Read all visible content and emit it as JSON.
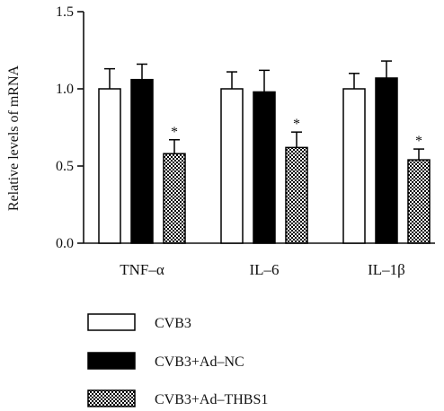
{
  "chart_data": {
    "type": "bar",
    "ylabel": "Relative levels of mRNA",
    "xlabel": "",
    "ylim": [
      0,
      1.5
    ],
    "yticks": [
      "0.0",
      "0.5",
      "1.0",
      "1.5"
    ],
    "ytick_values": [
      0,
      0.5,
      1.0,
      1.5
    ],
    "categories": [
      "TNF–α",
      "IL–6",
      "IL–1β"
    ],
    "series": [
      {
        "name": "CVB3",
        "values": [
          1.0,
          1.0,
          1.0
        ],
        "errors": [
          0.13,
          0.11,
          0.1
        ],
        "fill": "white",
        "significant": [
          false,
          false,
          false
        ]
      },
      {
        "name": "CVB3+Ad–NC",
        "values": [
          1.06,
          0.98,
          1.07
        ],
        "errors": [
          0.1,
          0.14,
          0.11
        ],
        "fill": "black",
        "significant": [
          false,
          false,
          false
        ]
      },
      {
        "name": "CVB3+Ad–THBS1",
        "values": [
          0.58,
          0.62,
          0.54
        ],
        "errors": [
          0.09,
          0.1,
          0.07
        ],
        "fill": "checker",
        "significant": [
          true,
          true,
          true
        ]
      }
    ],
    "significance_marker": "*",
    "legend_position": "bottom-left",
    "grid": false
  }
}
